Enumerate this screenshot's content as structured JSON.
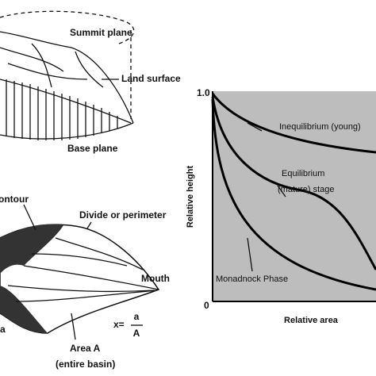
{
  "top_diagram": {
    "labels": [
      "Summit plane",
      "Land surface",
      "Base plane"
    ]
  },
  "basin_diagram": {
    "labels": [
      "ontour",
      "Divide or perimeter",
      "Mouth",
      "a",
      "Area A",
      "(entire basin)"
    ],
    "formula": {
      "lhs": "x=",
      "numerator": "a",
      "denominator": "A"
    }
  },
  "graph": {
    "y_max_label": "1.0",
    "origin_label": "0",
    "y_axis_label": "Relative height",
    "x_axis_label": "Relative area",
    "curve_labels": [
      "Inequilibrium (young)",
      "Equilibrium",
      "(mature) stage",
      "Monadnock Phase"
    ]
  }
}
